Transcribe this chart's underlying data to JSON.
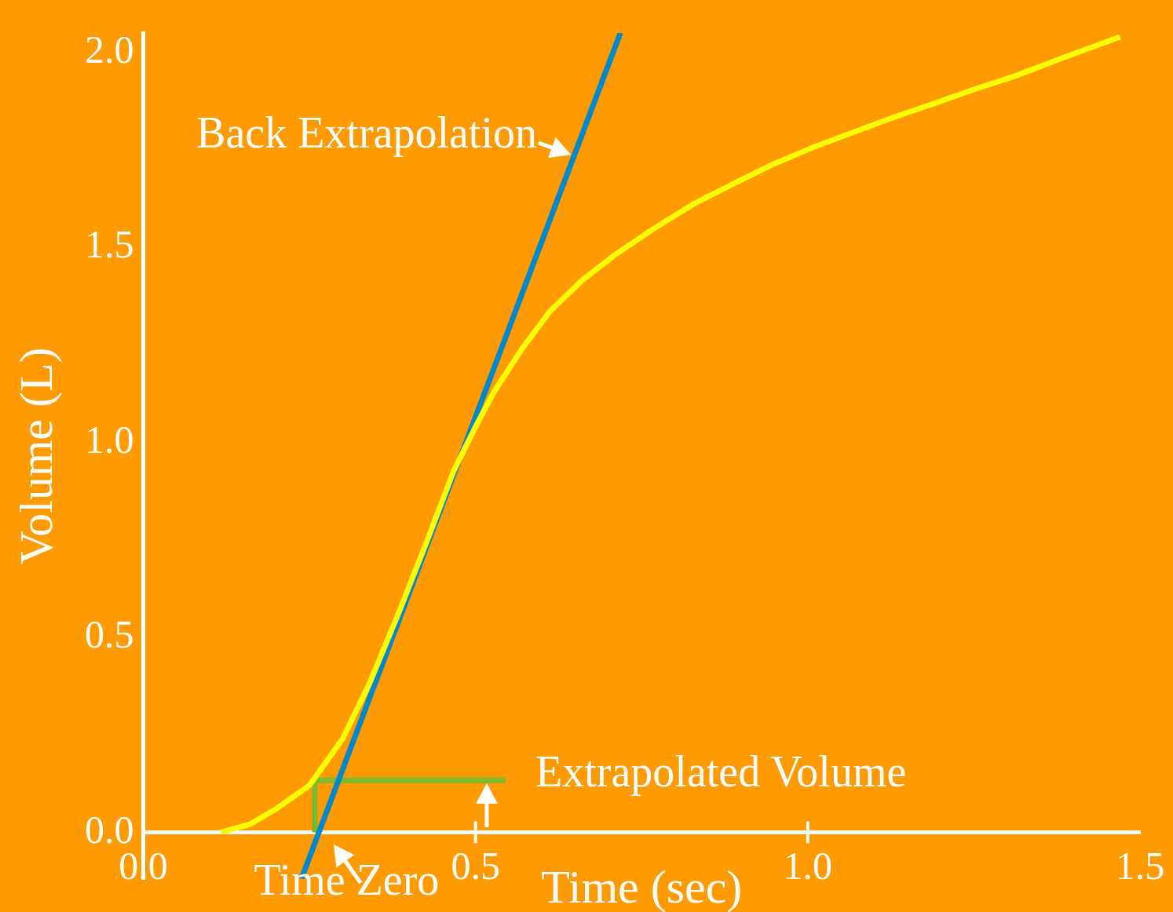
{
  "chart_data": {
    "type": "line",
    "xlabel": "Time (sec)",
    "ylabel": "Volume (L)",
    "xlim": [
      0,
      1.5
    ],
    "ylim": [
      -0.12,
      2.05
    ],
    "xticks": [
      {
        "value": 0,
        "label": "0.0"
      },
      {
        "value": 0.5,
        "label": "0.5"
      },
      {
        "value": 1,
        "label": "1.0"
      },
      {
        "value": 1.5,
        "label": "1.5"
      }
    ],
    "yticks": [
      {
        "value": 0,
        "label": "0.0"
      },
      {
        "value": 0.5,
        "label": "0.5"
      },
      {
        "value": 1,
        "label": "1.0"
      },
      {
        "value": 1.5,
        "label": "1.5"
      },
      {
        "value": 2,
        "label": "2.0"
      }
    ],
    "grid": false,
    "legend": false,
    "marker": "none",
    "series": [
      {
        "color": "#ffff00",
        "x": [
          0.117,
          0.16,
          0.2,
          0.25,
          0.3,
          0.34,
          0.383,
          0.43,
          0.467,
          0.5,
          0.528,
          0.57,
          0.612,
          0.66,
          0.709,
          0.77,
          0.83,
          0.89,
          0.95,
          1.01,
          1.071,
          1.13,
          1.192,
          1.25,
          1.313,
          1.39,
          1.47
        ],
        "values": [
          0,
          0.02,
          0.06,
          0.12,
          0.24,
          0.38,
          0.557,
          0.76,
          0.926,
          1.04,
          1.13,
          1.24,
          1.336,
          1.415,
          1.48,
          1.55,
          1.613,
          1.665,
          1.715,
          1.758,
          1.797,
          1.834,
          1.87,
          1.905,
          1.94,
          1.99,
          2.04
        ]
      },
      {
        "color": "#0088cc",
        "x": [
          0.238,
          0.718
        ],
        "values": [
          -0.119,
          2.05
        ]
      },
      {
        "color": "#7cbc32",
        "x": [
          0.258,
          0.258,
          0.545
        ],
        "values": [
          0,
          0.133,
          0.133
        ]
      }
    ],
    "annotations": [
      "Back Extrapolation",
      "Time Zero",
      {
        "text": "Extrapolated Volume",
        "x": 0.517,
        "y": 0.133
      }
    ]
  }
}
